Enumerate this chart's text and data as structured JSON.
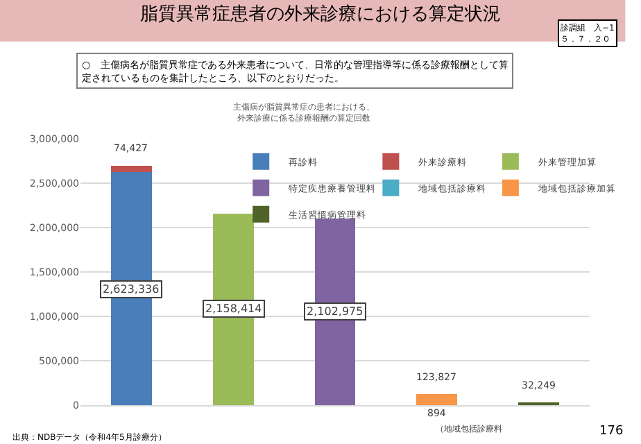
{
  "chart_data": {
    "type": "bar",
    "stacked": true,
    "title": "脂質異常症患者の外来診療における算定状況",
    "subtitle": "主傷病が脂質異常症の患者における、外来診療に係る診療報酬の算定回数",
    "categories": [
      null,
      null,
      null,
      null,
      null
    ],
    "series": [
      {
        "name": "再診料",
        "color": "#4a7ebb",
        "values": [
          2623336,
          0,
          0,
          0,
          0
        ],
        "value_labels": [
          "2,623,336",
          null,
          null,
          null,
          null
        ]
      },
      {
        "name": "外来診療料",
        "color": "#c0504d",
        "values": [
          74427,
          0,
          0,
          0,
          0
        ],
        "value_labels": [
          "74,427",
          null,
          null,
          null,
          null
        ]
      },
      {
        "name": "外来管理加算",
        "color": "#9bbb59",
        "values": [
          0,
          2158414,
          0,
          0,
          0
        ],
        "value_labels": [
          null,
          "2,158,414",
          null,
          null,
          null
        ]
      },
      {
        "name": "特定疾患療養管理料",
        "color": "#8064a2",
        "values": [
          0,
          0,
          2102975,
          0,
          0
        ],
        "value_labels": [
          null,
          null,
          "2,102,975",
          null,
          null
        ]
      },
      {
        "name": "地域包括診療料",
        "color": "#4bacc6",
        "values": [
          0,
          0,
          0,
          894,
          0
        ],
        "value_labels": [
          null,
          null,
          null,
          "894",
          null
        ]
      },
      {
        "name": "地域包括診療加算",
        "color": "#f79646",
        "values": [
          0,
          0,
          0,
          123827,
          0
        ],
        "value_labels": [
          null,
          null,
          null,
          "123,827",
          null
        ]
      },
      {
        "name": "生活習慣病管理料",
        "color": "#4f6228",
        "values": [
          0,
          0,
          0,
          0,
          32249
        ],
        "value_labels": [
          null,
          null,
          null,
          null,
          "32,249"
        ]
      }
    ],
    "ylim": [
      0,
      3000000
    ],
    "yticks": [
      0,
      {
        "value": 500000,
        "label": "500,000"
      },
      {
        "value": 1000000,
        "label": "1,000,000"
      },
      {
        "value": 1500000,
        "label": "1,500,000"
      },
      {
        "value": 2000000,
        "label": "2,000,000"
      },
      {
        "value": 2500000,
        "label": "2,500,000"
      },
      {
        "value": 3000000,
        "label": "3,000,000"
      }
    ],
    "grid": "y",
    "legend": "top right",
    "tick_labels": "y",
    "annotations": [
      "○　主傷病名が脂質異常症である外来患者について、日常的な管理指導等に係る診療報酬として算定されているものを集計したところ、以下のとおりだった。",
      "診調組　入−1\n５．７．２０",
      "出典：NDBデータ（令和4年5月診療分）",
      "176",
      "（地域包括診療料"
    ]
  }
}
